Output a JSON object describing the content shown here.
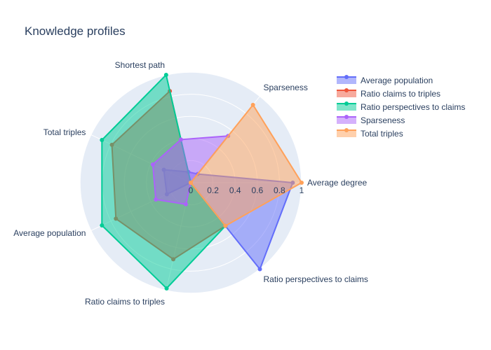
{
  "chart_data": {
    "type": "radar",
    "title": "Knowledge profiles",
    "axes": [
      "Average degree",
      "Sparseness",
      "Shortest path",
      "Total triples",
      "Average population",
      "Ratio claims to triples",
      "Ratio perspectives to claims"
    ],
    "radial_range": [
      0,
      1
    ],
    "radial_ticks": [
      0,
      0.2,
      0.4,
      0.6,
      0.8,
      1
    ],
    "radial_tick_labels": [
      "0",
      "0.2",
      "0.4",
      "0.6",
      "0.8",
      "1"
    ],
    "grid": true,
    "legend_position": "top-right",
    "series": [
      {
        "name": "Average population",
        "color": "#636efa",
        "values": [
          0.92,
          0.1,
          0.1,
          0.27,
          0.24,
          0.0,
          1.0
        ]
      },
      {
        "name": "Ratio claims to triples",
        "color": "#ef553b",
        "values": [
          0.0,
          0.0,
          0.85,
          0.79,
          0.75,
          0.71,
          0.5
        ]
      },
      {
        "name": "Ratio perspectives to claims",
        "color": "#00cc96",
        "values": [
          0.0,
          0.0,
          1.0,
          0.89,
          0.89,
          0.98,
          0.5
        ]
      },
      {
        "name": "Sparseness",
        "color": "#ab63fa",
        "values": [
          0.0,
          0.54,
          0.4,
          0.38,
          0.35,
          0.2,
          0.0
        ]
      },
      {
        "name": "Total triples",
        "color": "#ffa15a",
        "values": [
          1.0,
          0.9,
          0.0,
          0.0,
          0.0,
          0.0,
          0.5
        ]
      }
    ]
  }
}
